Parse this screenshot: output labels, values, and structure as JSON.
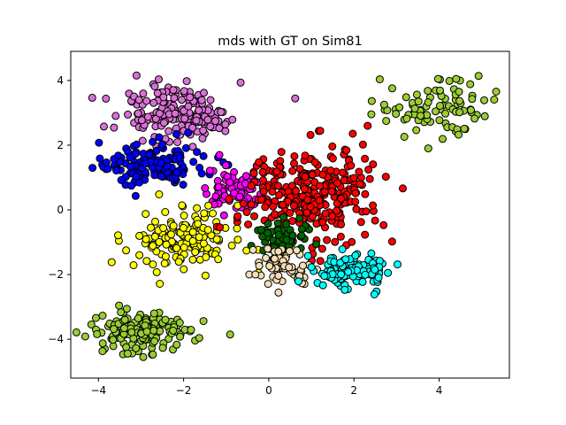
{
  "chart_data": {
    "type": "scatter",
    "title": "mds with GT on Sim81",
    "xlabel": "",
    "ylabel": "",
    "xlim": [
      -4.65,
      5.65
    ],
    "ylim": [
      -5.2,
      4.9
    ],
    "x_ticks": [
      -4,
      -2,
      0,
      2,
      4
    ],
    "y_ticks": [
      -4,
      -2,
      0,
      2,
      4
    ],
    "x_tick_labels": [
      "−4",
      "−2",
      "0",
      "2",
      "4"
    ],
    "y_tick_labels": [
      "−4",
      "−2",
      "0",
      "2",
      "4"
    ],
    "grid": false,
    "legend": false,
    "marker_edge_color": "#000000",
    "series": [
      {
        "color": "#da70d6",
        "center": [
          -2.2,
          3.0
        ],
        "spread": [
          0.75,
          0.42
        ],
        "count": 170
      },
      {
        "color": "#0000ff",
        "center": [
          -2.6,
          1.4
        ],
        "spread": [
          0.6,
          0.35
        ],
        "count": 150
      },
      {
        "color": "#ff00ff",
        "center": [
          -0.8,
          0.6
        ],
        "spread": [
          0.35,
          0.35
        ],
        "count": 70
      },
      {
        "color": "#ffff00",
        "center": [
          -1.9,
          -0.9
        ],
        "spread": [
          0.55,
          0.45
        ],
        "count": 150
      },
      {
        "color": "#9acd32",
        "center": [
          -3.0,
          -3.8
        ],
        "spread": [
          0.65,
          0.35
        ],
        "count": 150
      },
      {
        "color": "#9acd32",
        "center": [
          3.9,
          3.1
        ],
        "spread": [
          0.7,
          0.4
        ],
        "count": 90
      },
      {
        "color": "#ff0000",
        "center": [
          1.1,
          0.5
        ],
        "spread": [
          0.75,
          0.75
        ],
        "count": 290
      },
      {
        "color": "#006400",
        "center": [
          0.3,
          -0.9
        ],
        "spread": [
          0.35,
          0.25
        ],
        "count": 60
      },
      {
        "color": "#f5deb3",
        "center": [
          0.35,
          -1.8
        ],
        "spread": [
          0.35,
          0.28
        ],
        "count": 70
      },
      {
        "color": "#00ffff",
        "center": [
          1.9,
          -1.9
        ],
        "spread": [
          0.45,
          0.25
        ],
        "count": 130
      }
    ]
  }
}
